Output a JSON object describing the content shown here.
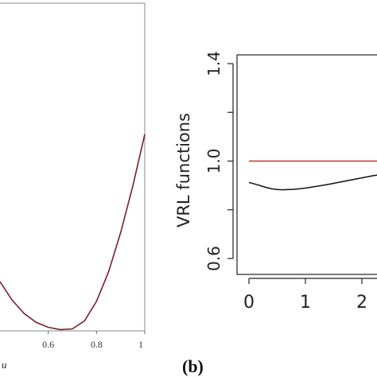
{
  "panel_b_label": "(b)",
  "chart_data": [
    {
      "type": "line",
      "title": "",
      "xlabel": "u",
      "ylabel": "",
      "xlim": [
        0.4,
        1.0
      ],
      "ylim": [
        0,
        1
      ],
      "x_ticks": [
        "0.6",
        "0.8",
        "1"
      ],
      "y_ticks": [],
      "grid": false,
      "series": [
        {
          "color": "#7a1f2b",
          "x": [
            0.4,
            0.45,
            0.5,
            0.55,
            0.6,
            0.65,
            0.7,
            0.75,
            0.8,
            0.85,
            0.9,
            0.95,
            1.0
          ],
          "y": [
            0.15,
            0.094,
            0.053,
            0.026,
            0.011,
            0.004,
            0.006,
            0.03,
            0.09,
            0.18,
            0.3,
            0.44,
            0.6
          ]
        }
      ]
    },
    {
      "type": "line",
      "title": "",
      "xlabel": "",
      "ylabel": "VRL functions",
      "xlim": [
        0,
        2.7
      ],
      "ylim": [
        0.6,
        1.4
      ],
      "x_ticks": [
        "0",
        "1",
        "2"
      ],
      "y_ticks": [
        "0.6",
        "1.0",
        "1.4"
      ],
      "grid": false,
      "series": [
        {
          "color": "#c0392b",
          "x": [
            0,
            2.7
          ],
          "y": [
            1.0,
            1.0
          ]
        },
        {
          "color": "#111111",
          "x": [
            0,
            0.1,
            0.2,
            0.3,
            0.4,
            0.5,
            0.6,
            0.8,
            1.0,
            1.2,
            1.4,
            1.6,
            1.8,
            2.0,
            2.2,
            2.4,
            2.7
          ],
          "y": [
            0.912,
            0.906,
            0.899,
            0.892,
            0.886,
            0.883,
            0.882,
            0.884,
            0.889,
            0.896,
            0.904,
            0.913,
            0.922,
            0.931,
            0.94,
            0.947,
            0.955
          ]
        }
      ]
    }
  ]
}
